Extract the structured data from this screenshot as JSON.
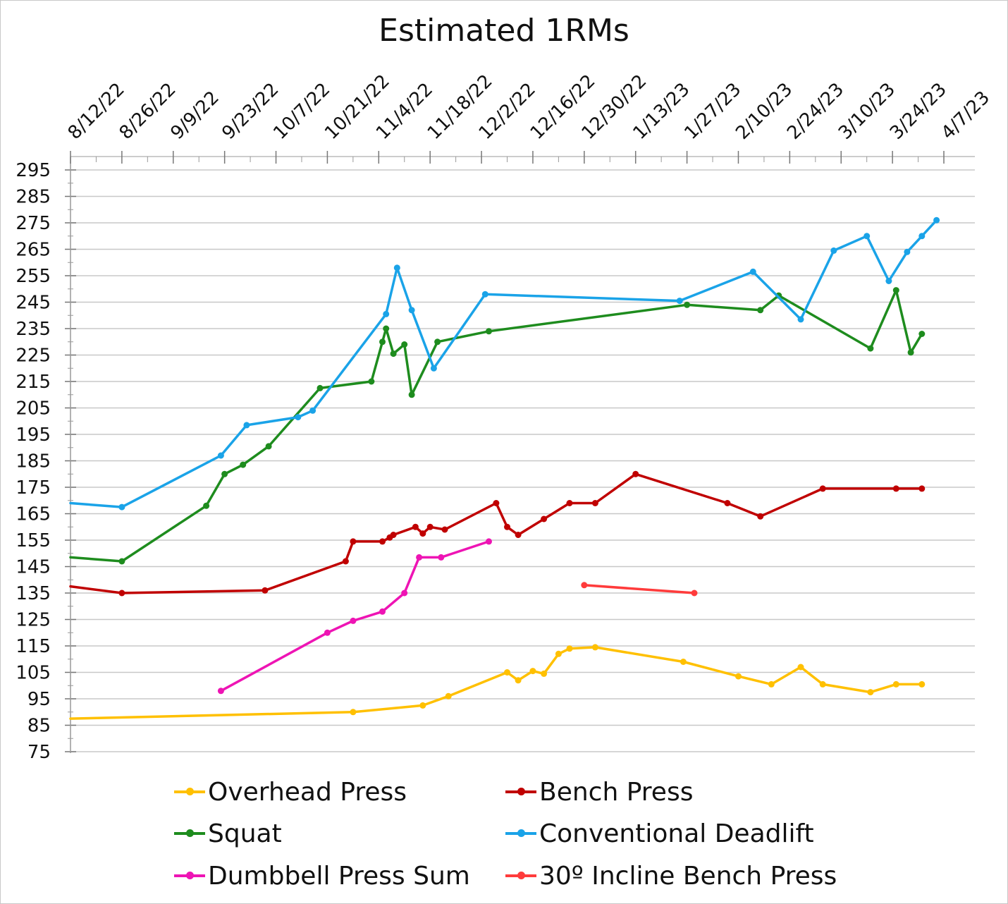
{
  "chart_data": {
    "type": "line",
    "title": "Estimated 1RMs",
    "xlabel": "",
    "ylabel": "",
    "x_ticks": [
      "8/12/22",
      "8/26/22",
      "9/9/22",
      "9/23/22",
      "10/7/22",
      "10/21/22",
      "11/4/22",
      "11/18/22",
      "12/2/22",
      "12/16/22",
      "12/30/22",
      "1/13/23",
      "1/27/23",
      "2/10/23",
      "2/24/23",
      "3/10/23",
      "3/24/23",
      "4/7/23"
    ],
    "xlim": [
      "8/12/22",
      "4/7/23"
    ],
    "y_ticks": [
      75,
      85,
      95,
      105,
      115,
      125,
      135,
      145,
      155,
      165,
      175,
      185,
      195,
      205,
      215,
      225,
      235,
      245,
      255,
      265,
      275,
      285,
      295
    ],
    "ylim": [
      75,
      295
    ],
    "grid": true,
    "legend_position": "bottom",
    "series": [
      {
        "name": "Overhead Press",
        "color": "#FFC000",
        "points": [
          [
            "8/12/22",
            87.5
          ],
          [
            "10/28/22",
            90
          ],
          [
            "11/16/22",
            92.5
          ],
          [
            "11/23/22",
            96
          ],
          [
            "12/9/22",
            105
          ],
          [
            "12/12/22",
            102
          ],
          [
            "12/16/22",
            105.5
          ],
          [
            "12/19/22",
            104.5
          ],
          [
            "12/23/22",
            112
          ],
          [
            "12/26/22",
            114
          ],
          [
            "1/2/23",
            114.5
          ],
          [
            "1/26/23",
            109
          ],
          [
            "2/10/23",
            103.5
          ],
          [
            "2/19/23",
            100.5
          ],
          [
            "2/27/23",
            107
          ],
          [
            "3/5/23",
            100.5
          ],
          [
            "3/18/23",
            97.5
          ],
          [
            "3/25/23",
            100.5
          ],
          [
            "4/1/23",
            100.5
          ]
        ]
      },
      {
        "name": "Bench Press",
        "color": "#C00000",
        "points": [
          [
            "8/12/22",
            137.5
          ],
          [
            "8/26/22",
            135
          ],
          [
            "10/4/22",
            136
          ],
          [
            "10/26/22",
            147
          ],
          [
            "10/28/22",
            154.5
          ],
          [
            "11/5/22",
            154.5
          ],
          [
            "11/7/22",
            156
          ],
          [
            "11/8/22",
            157
          ],
          [
            "11/14/22",
            160
          ],
          [
            "11/16/22",
            157.5
          ],
          [
            "11/18/22",
            160
          ],
          [
            "11/22/22",
            159
          ],
          [
            "12/6/22",
            169
          ],
          [
            "12/9/22",
            160
          ],
          [
            "12/12/22",
            157
          ],
          [
            "12/19/22",
            163
          ],
          [
            "12/26/22",
            169
          ],
          [
            "1/2/23",
            169
          ],
          [
            "1/13/23",
            180
          ],
          [
            "2/7/23",
            169
          ],
          [
            "2/16/23",
            164
          ],
          [
            "3/5/23",
            174.5
          ],
          [
            "3/25/23",
            174.5
          ],
          [
            "4/1/23",
            174.5
          ]
        ]
      },
      {
        "name": "Squat",
        "color": "#1E8C1E",
        "points": [
          [
            "8/12/22",
            148.5
          ],
          [
            "8/26/22",
            147
          ],
          [
            "9/18/22",
            168
          ],
          [
            "9/23/22",
            180
          ],
          [
            "9/28/22",
            183.5
          ],
          [
            "10/5/22",
            190.5
          ],
          [
            "10/19/22",
            212.5
          ],
          [
            "11/2/22",
            215
          ],
          [
            "11/5/22",
            230
          ],
          [
            "11/6/22",
            235
          ],
          [
            "11/8/22",
            225.5
          ],
          [
            "11/11/22",
            229
          ],
          [
            "11/13/22",
            210
          ],
          [
            "11/20/22",
            230
          ],
          [
            "12/4/22",
            234
          ],
          [
            "1/27/23",
            244
          ],
          [
            "2/16/23",
            242
          ],
          [
            "2/21/23",
            247.5
          ],
          [
            "3/18/23",
            227.5
          ],
          [
            "3/25/23",
            249.5
          ],
          [
            "3/29/23",
            226
          ],
          [
            "4/1/23",
            233
          ]
        ]
      },
      {
        "name": "Conventional Deadlift",
        "color": "#1AA3E8",
        "points": [
          [
            "8/12/22",
            169
          ],
          [
            "8/26/22",
            167.5
          ],
          [
            "9/22/22",
            187
          ],
          [
            "9/29/22",
            198.5
          ],
          [
            "10/13/22",
            201.5
          ],
          [
            "10/17/22",
            204
          ],
          [
            "11/6/22",
            240.5
          ],
          [
            "11/9/22",
            258
          ],
          [
            "11/13/22",
            242
          ],
          [
            "11/19/22",
            220
          ],
          [
            "12/3/22",
            248
          ],
          [
            "1/25/23",
            245.5
          ],
          [
            "2/14/23",
            256.5
          ],
          [
            "2/27/23",
            238.5
          ],
          [
            "3/8/23",
            264.5
          ],
          [
            "3/17/23",
            270
          ],
          [
            "3/23/23",
            253
          ],
          [
            "3/28/23",
            264
          ],
          [
            "4/1/23",
            270
          ],
          [
            "4/5/23",
            276
          ]
        ]
      },
      {
        "name": "Dumbbell Press Sum",
        "color": "#EE14B4",
        "points": [
          [
            "9/22/22",
            98
          ],
          [
            "10/21/22",
            120
          ],
          [
            "10/28/22",
            124.5
          ],
          [
            "11/5/22",
            128
          ],
          [
            "11/11/22",
            135
          ],
          [
            "11/15/22",
            148.5
          ],
          [
            "11/21/22",
            148.5
          ],
          [
            "12/4/22",
            154.5
          ]
        ]
      },
      {
        "name": "30º Incline Bench Press",
        "color": "#FF3B3B",
        "points": [
          [
            "12/30/22",
            138
          ],
          [
            "1/29/23",
            135
          ]
        ]
      }
    ]
  }
}
